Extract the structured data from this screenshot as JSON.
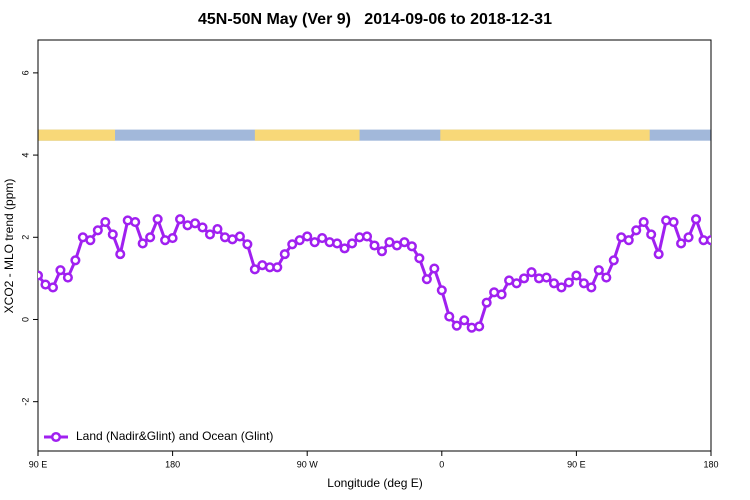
{
  "chart_data": {
    "type": "line",
    "title": "45N-50N May (Ver 9)   2014-09-06 to 2018-12-31",
    "xlabel": "Longitude (deg E)",
    "ylabel": "XCO2 - MLO trend (ppm)",
    "xlim": [
      90,
      540
    ],
    "xticks": [
      {
        "value": 90,
        "label": "90 E"
      },
      180,
      {
        "value": 270,
        "label": "90 W"
      },
      {
        "value": 360,
        "label": "0"
      },
      {
        "value": 450,
        "label": "90 E"
      },
      {
        "value": 540,
        "label": "180"
      }
    ],
    "ylim": [
      -3.2,
      6.8
    ],
    "yticks": [
      -2,
      0,
      2,
      4,
      6
    ],
    "legend": "lower left",
    "land_strip": {
      "ylim": [
        4.35,
        4.62
      ],
      "land_color": "#f8d878",
      "ocean_color": "#a2b8da",
      "land_ranges": [
        [
          90,
          141.5
        ],
        [
          235,
          305
        ],
        [
          359,
          499
        ]
      ]
    },
    "x": [
      90,
      95,
      100,
      105,
      110,
      115,
      120,
      125,
      130,
      135,
      140,
      145,
      150,
      155,
      160,
      165,
      170,
      175,
      180,
      185,
      190,
      195,
      200,
      205,
      210,
      215,
      220,
      225,
      230,
      235,
      240,
      245,
      250,
      255,
      260,
      265,
      270,
      275,
      280,
      285,
      290,
      295,
      300,
      305,
      310,
      315,
      320,
      325,
      330,
      335,
      340,
      345,
      350,
      355,
      360,
      365,
      370,
      375,
      380,
      385,
      390,
      395,
      400,
      405,
      410,
      415,
      420,
      425,
      430,
      435,
      440,
      445,
      450,
      455,
      460,
      465,
      470,
      475,
      480,
      485,
      490,
      495,
      500,
      505,
      510,
      515,
      520,
      525,
      530,
      535,
      540
    ],
    "series": [
      {
        "name": "Land (Nadir&Glint) and Ocean (Glint)",
        "color": "#a020f0",
        "values": [
          1.07,
          0.85,
          0.78,
          1.2,
          1.02,
          1.44,
          2.0,
          1.93,
          2.17,
          2.37,
          2.07,
          1.59,
          2.41,
          2.37,
          1.85,
          2.0,
          2.44,
          1.93,
          1.98,
          2.44,
          2.29,
          2.34,
          2.24,
          2.07,
          2.2,
          2.0,
          1.95,
          2.02,
          1.83,
          1.22,
          1.32,
          1.27,
          1.27,
          1.59,
          1.83,
          1.93,
          2.02,
          1.88,
          1.98,
          1.88,
          1.85,
          1.73,
          1.85,
          2.0,
          2.02,
          1.8,
          1.66,
          1.88,
          1.8,
          1.88,
          1.78,
          1.49,
          0.98,
          1.24,
          0.71,
          0.07,
          -0.15,
          -0.02,
          -0.2,
          -0.17,
          0.41,
          0.66,
          0.61,
          0.95,
          0.88,
          1.0,
          1.15,
          1.0,
          1.02,
          0.88,
          0.78,
          0.9,
          1.07,
          0.88,
          0.78,
          1.2,
          1.02,
          1.44,
          2.0,
          1.93,
          2.17,
          2.37,
          2.07,
          1.59,
          2.41,
          2.37,
          1.85,
          2.0,
          2.44,
          1.93,
          1.93
        ]
      }
    ]
  }
}
